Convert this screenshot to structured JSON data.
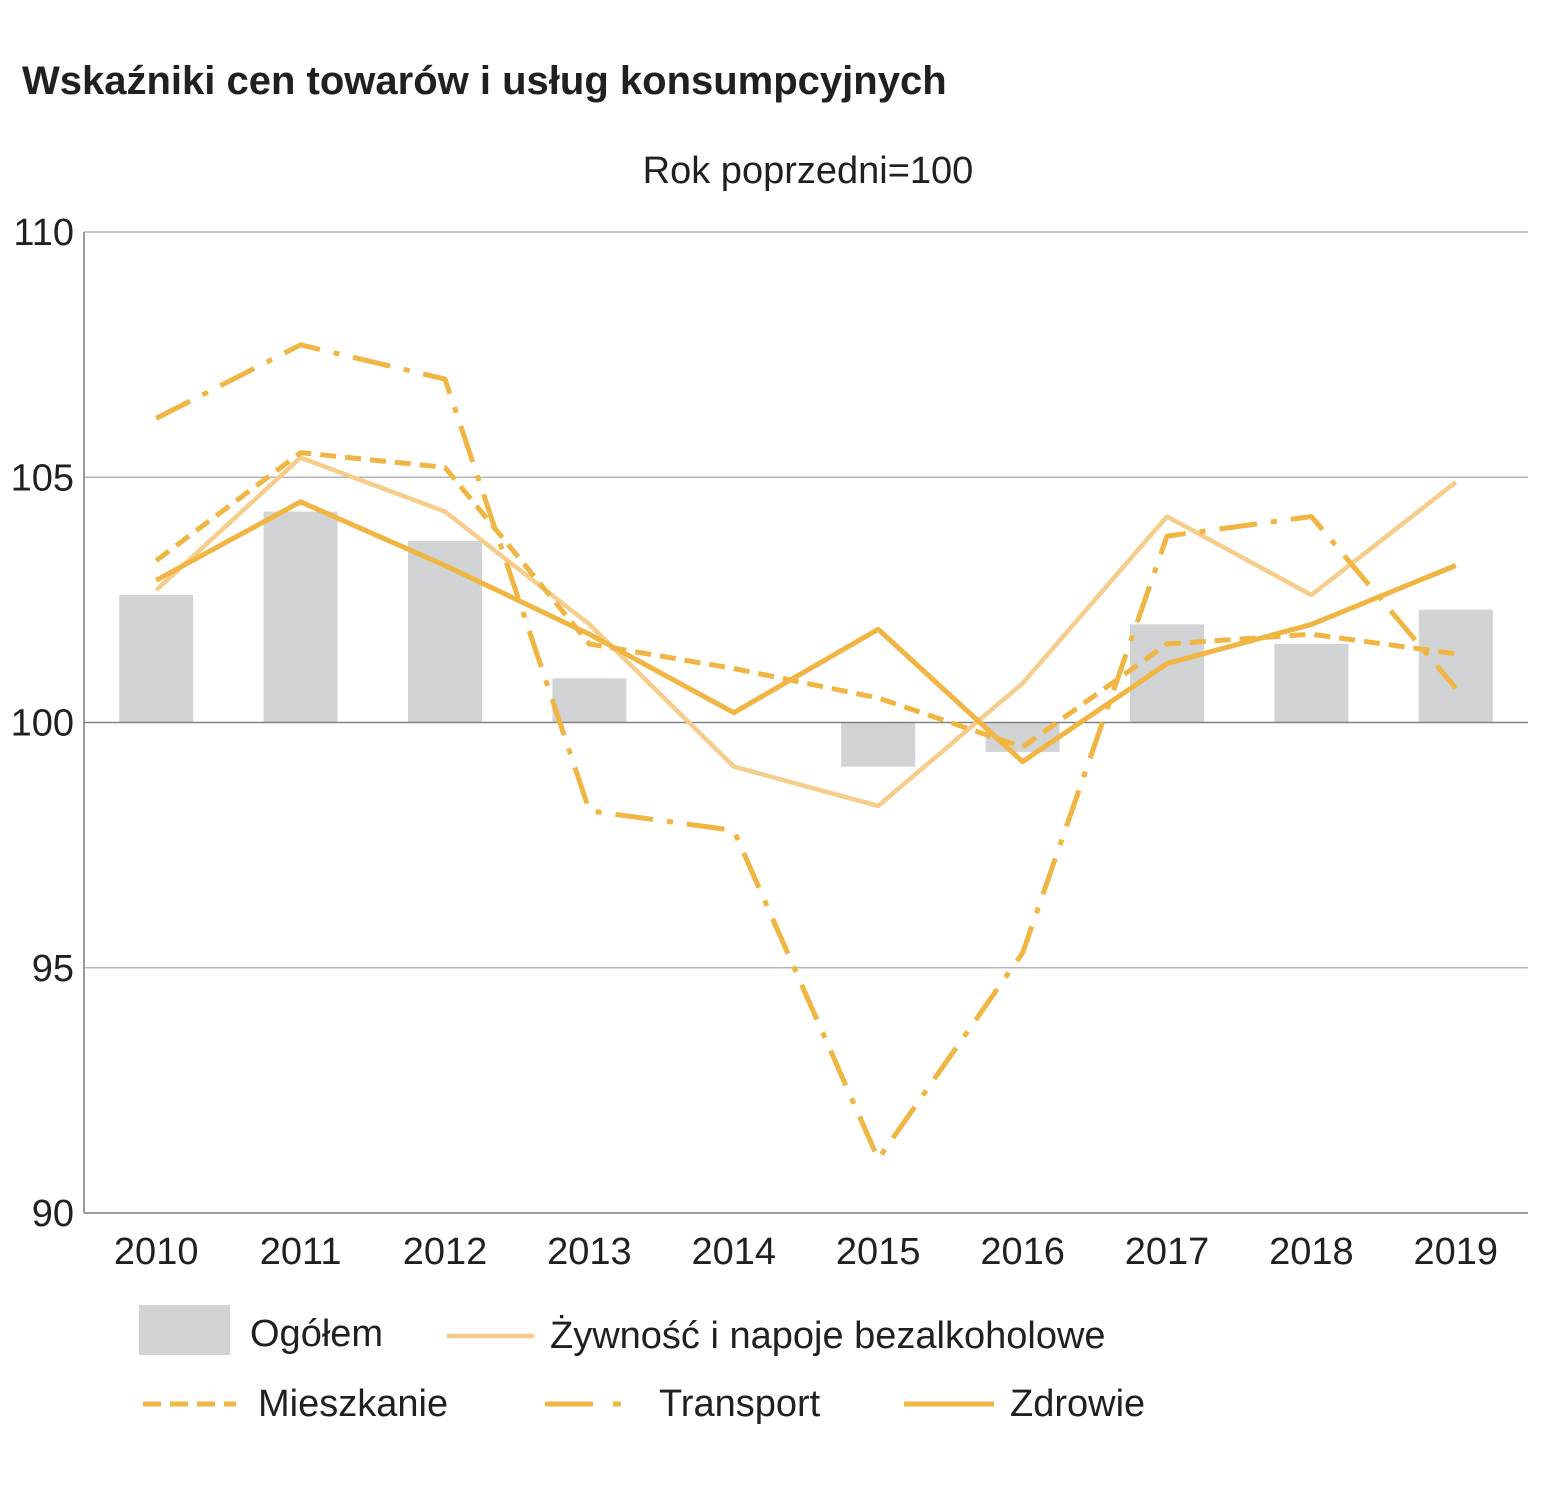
{
  "chart_data": {
    "type": "bar",
    "title": "Wskaźniki cen towarów i usług konsumpcyjnych",
    "subtitle": "Rok poprzedni=100",
    "xlabel": "",
    "ylabel": "",
    "ylim": [
      90,
      110
    ],
    "yticks": [
      "90",
      "95",
      "100",
      "105",
      "110"
    ],
    "yticks_values": [
      90,
      95,
      100,
      105,
      110
    ],
    "baseline": 100,
    "grid": true,
    "legend_position": "bottom",
    "categories": [
      "2010",
      "2011",
      "2012",
      "2013",
      "2014",
      "2015",
      "2016",
      "2017",
      "2018",
      "2019"
    ],
    "bars": {
      "name": "Ogółem",
      "color": "#d1d3d4",
      "values": [
        102.6,
        104.3,
        103.7,
        100.9,
        100.0,
        99.1,
        99.4,
        102.0,
        101.6,
        102.3
      ]
    },
    "series": [
      {
        "name": "Żywność i napoje bezalkoholowe",
        "style": "solid-light",
        "color": "#f6cd8a",
        "values": [
          102.7,
          105.4,
          104.3,
          102.0,
          99.1,
          98.3,
          100.8,
          104.2,
          102.6,
          104.9
        ]
      },
      {
        "name": "Mieszkanie",
        "style": "dashed",
        "color": "#f0b542",
        "values": [
          103.3,
          105.5,
          105.2,
          101.6,
          101.1,
          100.5,
          99.5,
          101.6,
          101.8,
          101.4
        ]
      },
      {
        "name": "Transport",
        "style": "dash-dot",
        "color": "#f0b542",
        "values": [
          106.2,
          107.7,
          107.0,
          98.2,
          97.8,
          91.1,
          95.3,
          103.8,
          104.2,
          100.7
        ]
      },
      {
        "name": "Zdrowie",
        "style": "solid",
        "color": "#f0b542",
        "values": [
          102.9,
          104.5,
          103.2,
          101.8,
          100.2,
          101.9,
          99.2,
          101.2,
          102.0,
          103.2
        ]
      }
    ]
  }
}
